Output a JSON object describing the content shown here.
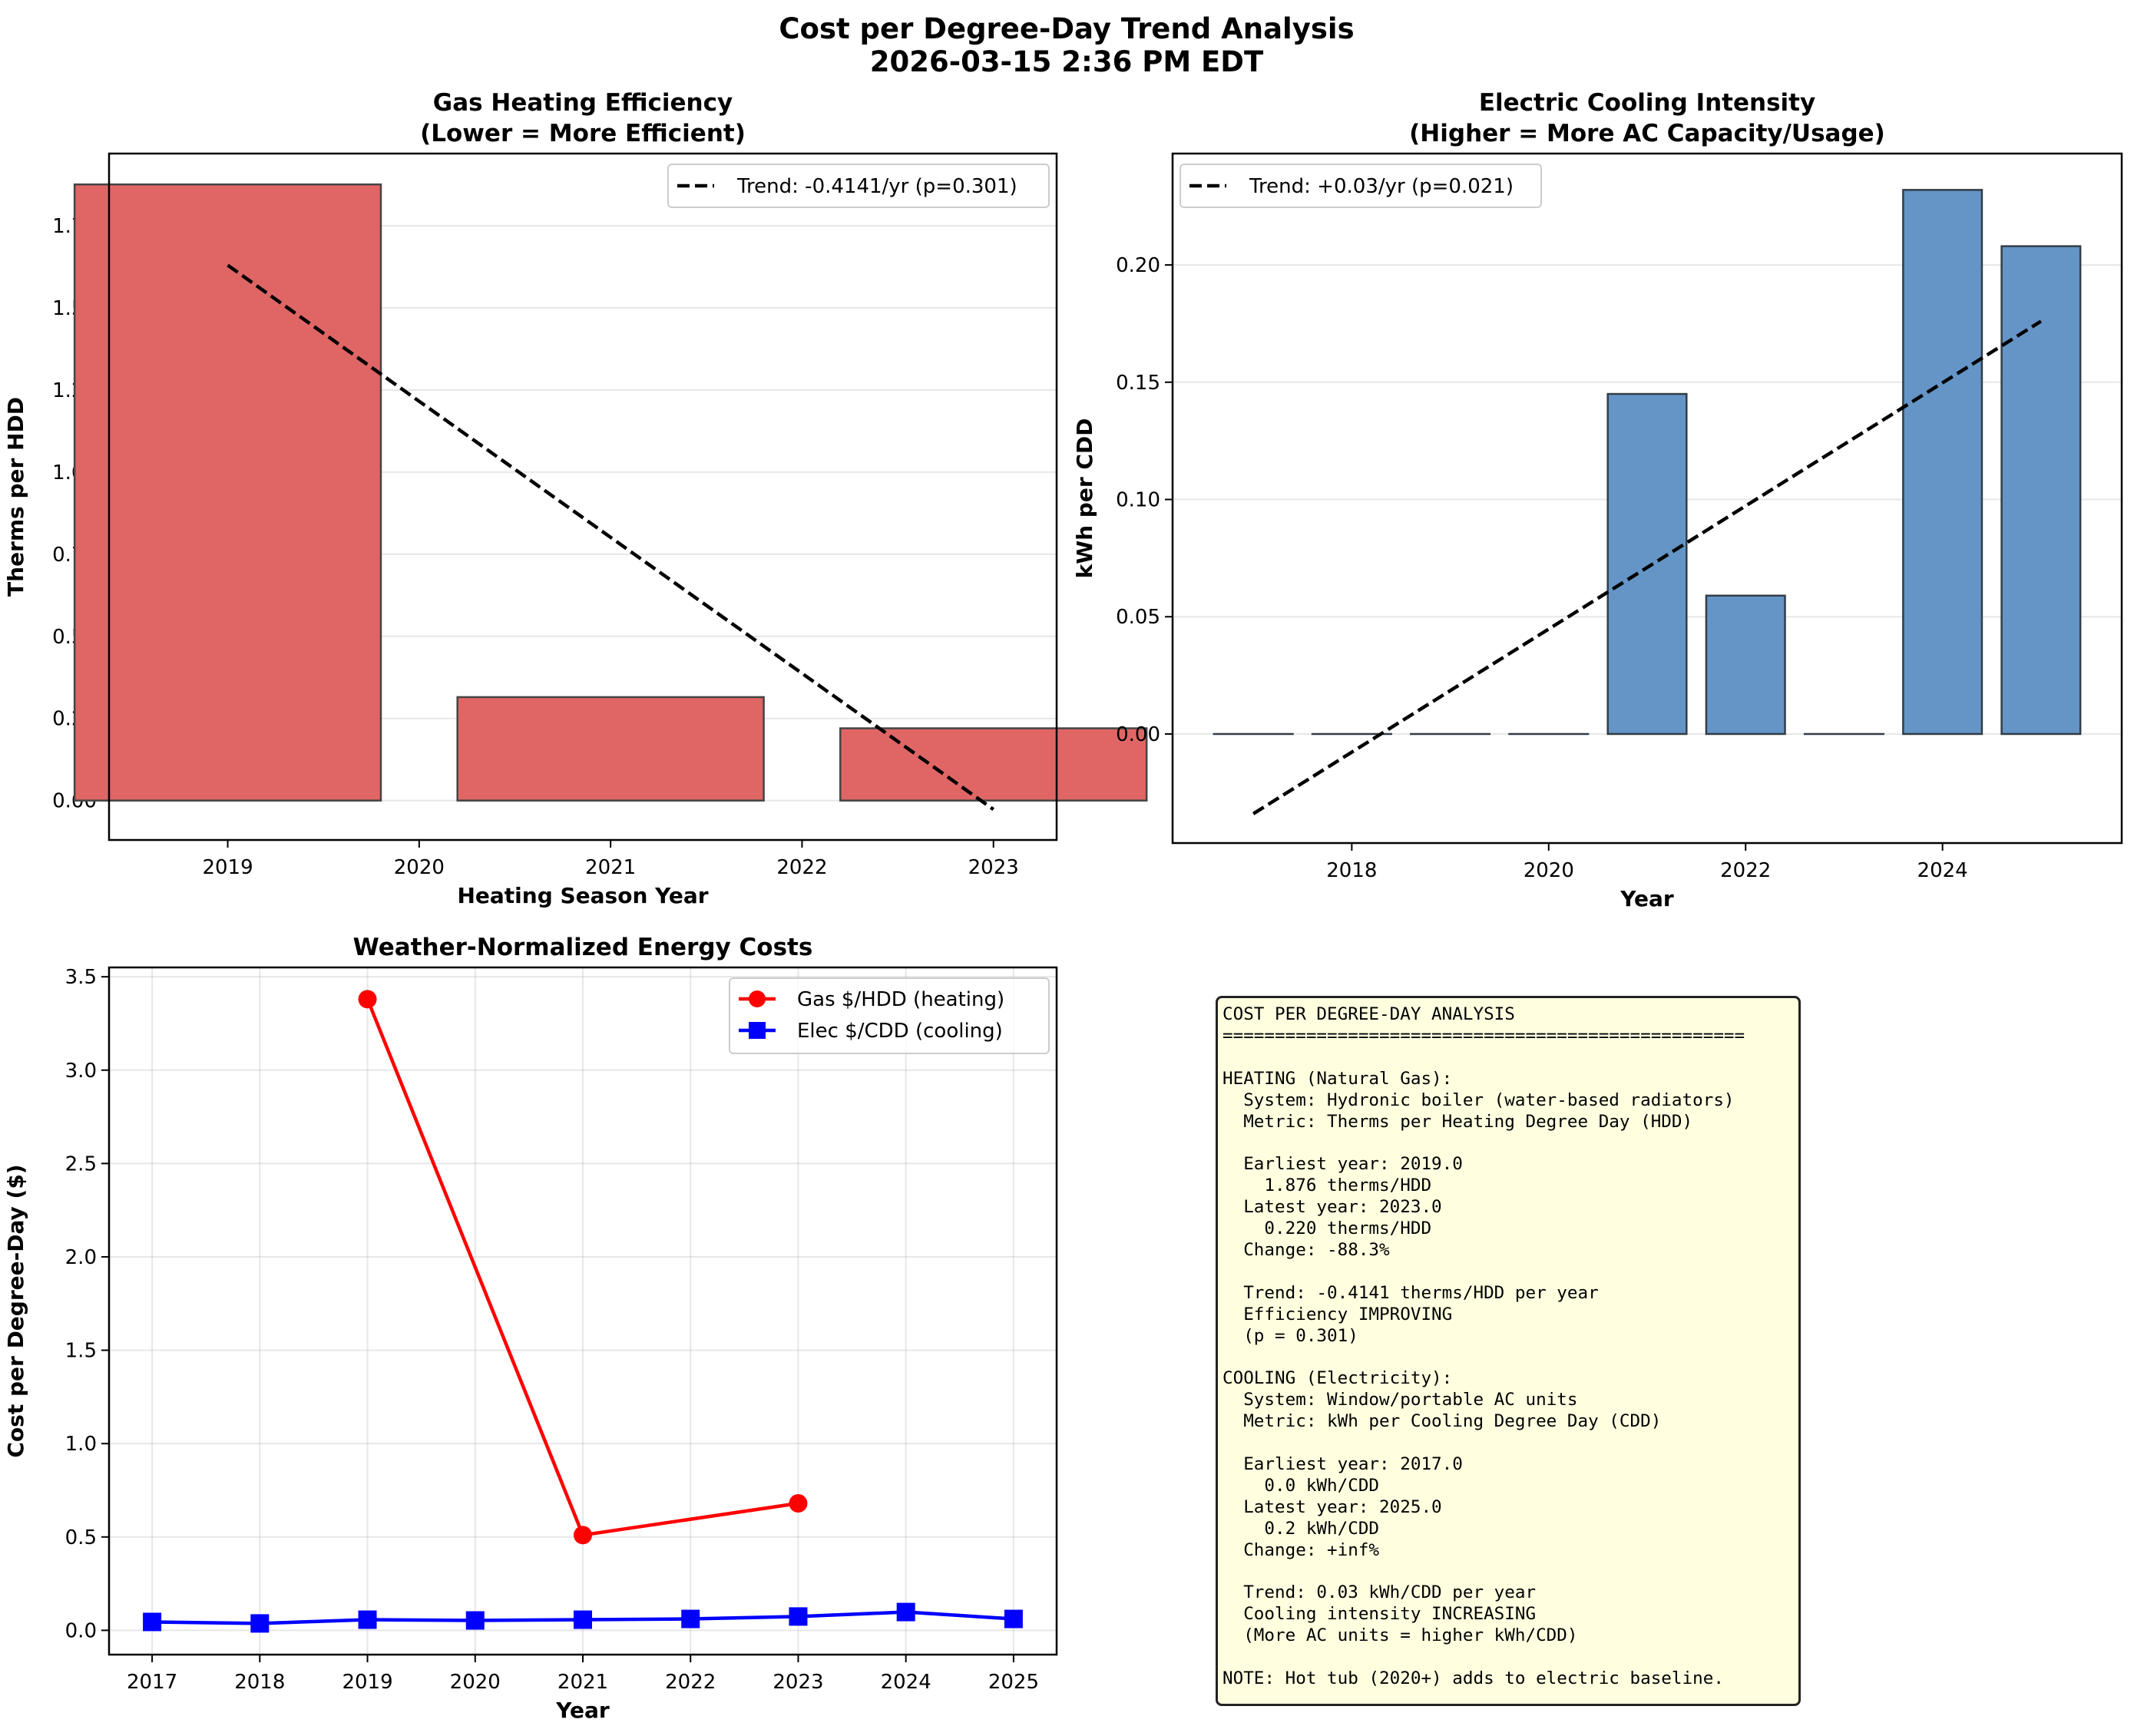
{
  "figure": {
    "suptitle_line1": "Cost per Degree-Day Trend Analysis",
    "suptitle_line2": "2026-03-15 2:36 PM EDT"
  },
  "chart_data": [
    {
      "id": "gas-heating",
      "type": "bar",
      "title": "Gas Heating Efficiency",
      "subtitle": "(Lower = More Efficient)",
      "xlabel": "Heating Season Year",
      "ylabel": "Therms per HDD",
      "categories": [
        2019,
        2021,
        2023
      ],
      "values": [
        1.876,
        0.315,
        0.22
      ],
      "bar_color": "#e06666",
      "bar_edge_color": "#444444",
      "xlim": [
        2018.38,
        2023.33
      ],
      "ylim": [
        -0.12,
        1.97
      ],
      "xticks": [
        "2019",
        "2020",
        "2021",
        "2022",
        "2023"
      ],
      "xtick_values": [
        2019,
        2020,
        2021,
        2022,
        2023
      ],
      "yticks": [
        "0.00",
        "0.25",
        "0.50",
        "0.75",
        "1.00",
        "1.25",
        "1.50",
        "1.75"
      ],
      "ytick_values": [
        0,
        0.25,
        0.5,
        0.75,
        1.0,
        1.25,
        1.5,
        1.75
      ],
      "grid": "y",
      "trend": {
        "x": [
          2019,
          2023
        ],
        "y": [
          1.63,
          -0.027
        ],
        "label": "Trend: -0.4141/yr (p=0.301)",
        "style": "dashed",
        "color": "#000000"
      },
      "legend_position": "top-right"
    },
    {
      "id": "electric-cooling",
      "type": "bar",
      "title": "Electric Cooling Intensity",
      "subtitle": "(Higher = More AC Capacity/Usage)",
      "xlabel": "Year",
      "ylabel": "kWh per CDD",
      "categories": [
        2017,
        2018,
        2019,
        2020,
        2021,
        2022,
        2023,
        2024,
        2025
      ],
      "values": [
        0.0,
        0.0,
        0.0,
        0.0,
        0.145,
        0.059,
        0.0,
        0.232,
        0.208
      ],
      "bar_color": "#6495c6",
      "bar_edge_color": "#333d47",
      "xlim": [
        2016.18,
        2025.82
      ],
      "ylim": [
        -0.0465,
        0.2475
      ],
      "xticks": [
        "2018",
        "2020",
        "2022",
        "2024"
      ],
      "xtick_values": [
        2018,
        2020,
        2022,
        2024
      ],
      "yticks": [
        "0.00",
        "0.05",
        "0.10",
        "0.15",
        "0.20"
      ],
      "ytick_values": [
        0,
        0.05,
        0.1,
        0.15,
        0.2
      ],
      "grid": "y",
      "trend": {
        "x": [
          2017,
          2025
        ],
        "y": [
          -0.034,
          0.176
        ],
        "label": "Trend: +0.03/yr (p=0.021)",
        "style": "dashed",
        "color": "#000000"
      },
      "legend_position": "top-left"
    },
    {
      "id": "weather-normalized",
      "type": "line",
      "title": "Weather-Normalized Energy Costs",
      "xlabel": "Year",
      "ylabel": "Cost per Degree-Day ($)",
      "xlim": [
        2016.6,
        2025.4
      ],
      "ylim": [
        -0.13,
        3.55
      ],
      "xticks": [
        "2017",
        "2018",
        "2019",
        "2020",
        "2021",
        "2022",
        "2023",
        "2024",
        "2025"
      ],
      "xtick_values": [
        2017,
        2018,
        2019,
        2020,
        2021,
        2022,
        2023,
        2024,
        2025
      ],
      "yticks": [
        "0.0",
        "0.5",
        "1.0",
        "1.5",
        "2.0",
        "2.5",
        "3.0",
        "3.5"
      ],
      "ytick_values": [
        0,
        0.5,
        1.0,
        1.5,
        2.0,
        2.5,
        3.0,
        3.5
      ],
      "grid": "both",
      "series": [
        {
          "name": "Gas $/HDD (heating)",
          "marker": "circle",
          "color": "#ff0000",
          "x": [
            2019,
            2021,
            2023
          ],
          "y": [
            3.38,
            0.51,
            0.68
          ]
        },
        {
          "name": "Elec $/CDD (cooling)",
          "marker": "square",
          "color": "#0000ff",
          "x": [
            2017,
            2018,
            2019,
            2020,
            2021,
            2022,
            2023,
            2024,
            2025
          ],
          "y": [
            0.045,
            0.037,
            0.057,
            0.053,
            0.057,
            0.061,
            0.074,
            0.098,
            0.061
          ]
        }
      ],
      "legend_position": "top-right"
    }
  ],
  "summary_box": {
    "lines": [
      "COST PER DEGREE-DAY ANALYSIS",
      "==================================================",
      "",
      "HEATING (Natural Gas):",
      "  System: Hydronic boiler (water-based radiators)",
      "  Metric: Therms per Heating Degree Day (HDD)",
      "",
      "  Earliest year: 2019.0",
      "    1.876 therms/HDD",
      "  Latest year: 2023.0",
      "    0.220 therms/HDD",
      "  Change: -88.3%",
      "",
      "  Trend: -0.4141 therms/HDD per year",
      "  Efficiency IMPROVING",
      "  (p = 0.301)",
      "",
      "COOLING (Electricity):",
      "  System: Window/portable AC units",
      "  Metric: kWh per Cooling Degree Day (CDD)",
      "",
      "  Earliest year: 2017.0",
      "    0.0 kWh/CDD",
      "  Latest year: 2025.0",
      "    0.2 kWh/CDD",
      "  Change: +inf%",
      "",
      "  Trend: 0.03 kWh/CDD per year",
      "  Cooling intensity INCREASING",
      "  (More AC units = higher kWh/CDD)",
      "",
      "NOTE: Hot tub (2020+) adds to electric baseline."
    ]
  }
}
